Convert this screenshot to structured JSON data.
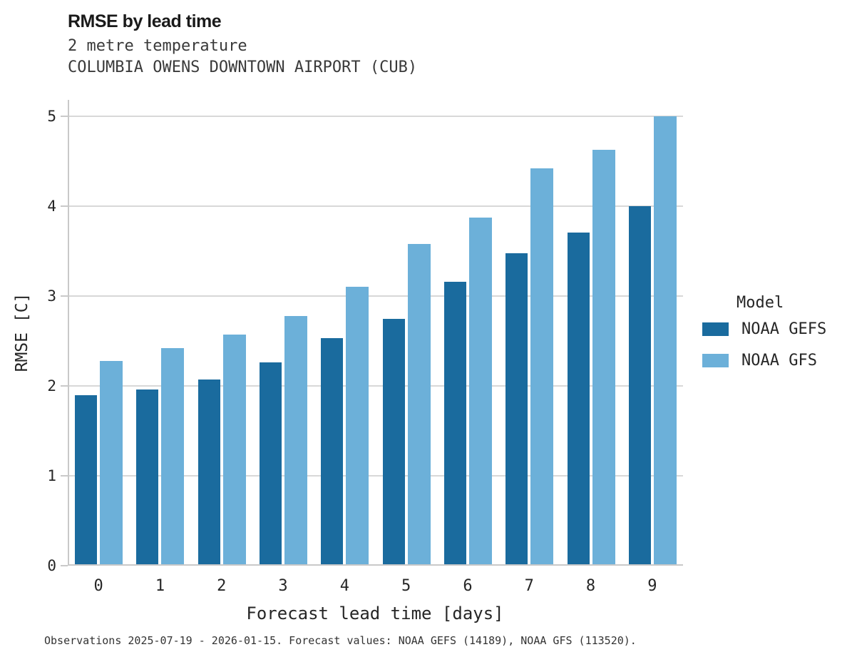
{
  "chart_data": {
    "type": "bar",
    "title": "RMSE by lead time",
    "subtitle": [
      "2 metre temperature",
      "COLUMBIA OWENS DOWNTOWN AIRPORT (CUB)"
    ],
    "categories": [
      "0",
      "1",
      "2",
      "3",
      "4",
      "5",
      "6",
      "7",
      "8",
      "9"
    ],
    "series": [
      {
        "name": "NOAA GEFS",
        "color": "#1a6b9e",
        "values": [
          1.9,
          1.96,
          2.07,
          2.26,
          2.53,
          2.75,
          3.16,
          3.48,
          3.71,
          4.0
        ]
      },
      {
        "name": "NOAA GFS",
        "color": "#6cb0d9",
        "values": [
          2.28,
          2.42,
          2.57,
          2.78,
          3.1,
          3.58,
          3.87,
          4.42,
          4.63,
          5.0
        ]
      }
    ],
    "xlabel": "Forecast lead time [days]",
    "ylabel": "RMSE [C]",
    "ylim": [
      0,
      5
    ],
    "yticks": [
      0,
      1,
      2,
      3,
      4,
      5
    ],
    "grid": "horizontal",
    "legend_position": "right",
    "legend_title": "Model",
    "caption": "Observations 2025-07-19 - 2026-01-15. Forecast values: NOAA GEFS (14189), NOAA GFS (113520)."
  },
  "colors": {
    "gefs_bar": "#1a6b9e",
    "gfs_bar": "#6cb0d9",
    "gridline": "#d8d8d8",
    "spine": "#c9c9c9",
    "text": "#262626"
  }
}
